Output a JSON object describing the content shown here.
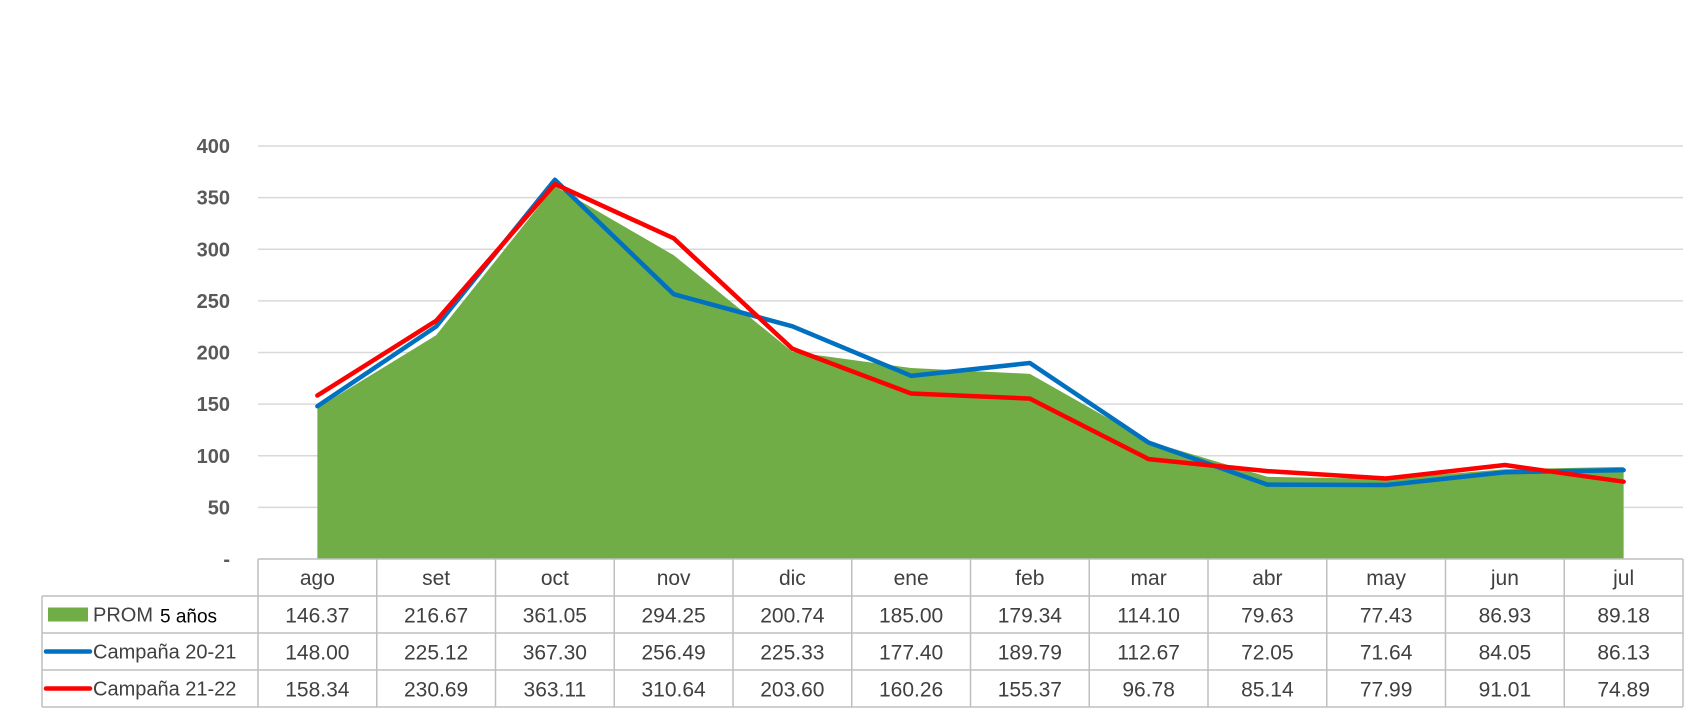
{
  "chart_data": {
    "type": "area",
    "categories": [
      "ago",
      "set",
      "oct",
      "nov",
      "dic",
      "ene",
      "feb",
      "mar",
      "abr",
      "may",
      "jun",
      "jul"
    ],
    "ylim": [
      0,
      400
    ],
    "yticks": [
      {
        "value": 0,
        "label": "-"
      },
      {
        "value": 50,
        "label": "50"
      },
      {
        "value": 100,
        "label": "100"
      },
      {
        "value": 150,
        "label": "150"
      },
      {
        "value": 200,
        "label": "200"
      },
      {
        "value": 250,
        "label": "250"
      },
      {
        "value": 300,
        "label": "300"
      },
      {
        "value": 350,
        "label": "350"
      },
      {
        "value": 400,
        "label": "400"
      }
    ],
    "grid": true,
    "legend": "data-table",
    "series": [
      {
        "name": "PROM",
        "name_suffix": "5 años",
        "kind": "area",
        "color": "#70AD47",
        "values": [
          146.37,
          216.67,
          361.05,
          294.25,
          200.74,
          185.0,
          179.34,
          114.1,
          79.63,
          77.43,
          86.93,
          89.18
        ],
        "labels": [
          "146.37",
          "216.67",
          "361.05",
          "294.25",
          "200.74",
          "185.00",
          "179.34",
          "114.10",
          "79.63",
          "77.43",
          "86.93",
          "89.18"
        ]
      },
      {
        "name": "Campaña 20-21",
        "kind": "line",
        "color": "#0070C0",
        "values": [
          148.0,
          225.12,
          367.3,
          256.49,
          225.33,
          177.4,
          189.79,
          112.67,
          72.05,
          71.64,
          84.05,
          86.13
        ],
        "labels": [
          "148.00",
          "225.12",
          "367.30",
          "256.49",
          "225.33",
          "177.40",
          "189.79",
          "112.67",
          "72.05",
          "71.64",
          "84.05",
          "86.13"
        ]
      },
      {
        "name": "Campaña 21-22",
        "kind": "line",
        "color": "#FF0000",
        "values": [
          158.34,
          230.69,
          363.11,
          310.64,
          203.6,
          160.26,
          155.37,
          96.78,
          85.14,
          77.99,
          91.01,
          74.89
        ],
        "labels": [
          "158.34",
          "230.69",
          "363.11",
          "310.64",
          "203.60",
          "160.26",
          "155.37",
          "96.78",
          "85.14",
          "77.99",
          "91.01",
          "74.89"
        ]
      }
    ]
  }
}
